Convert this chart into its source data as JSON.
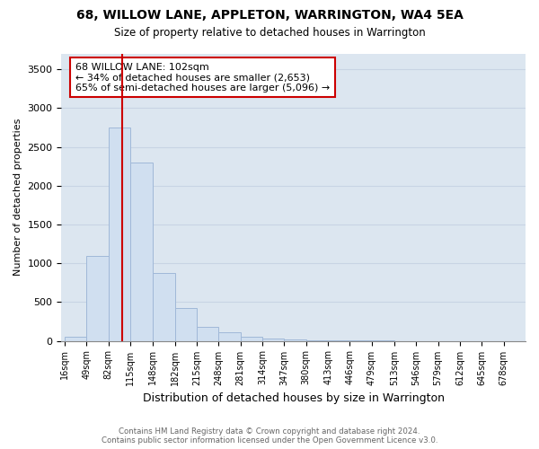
{
  "title": "68, WILLOW LANE, APPLETON, WARRINGTON, WA4 5EA",
  "subtitle": "Size of property relative to detached houses in Warrington",
  "xlabel": "Distribution of detached houses by size in Warrington",
  "ylabel": "Number of detached properties",
  "bar_color": "#d0dff0",
  "bar_edge_color": "#a0b8d8",
  "grid_color": "#c8d4e4",
  "background_color": "#dce6f0",
  "property_size": 102,
  "property_line_color": "#cc0000",
  "annotation_text": "68 WILLOW LANE: 102sqm\n← 34% of detached houses are smaller (2,653)\n65% of semi-detached houses are larger (5,096) →",
  "annotation_box_color": "#ffffff",
  "annotation_border_color": "#cc0000",
  "footer_text": "Contains HM Land Registry data © Crown copyright and database right 2024.\nContains public sector information licensed under the Open Government Licence v3.0.",
  "bin_edges": [
    16,
    49,
    82,
    115,
    148,
    182,
    215,
    248,
    281,
    314,
    347,
    380,
    413,
    446,
    479,
    513,
    546,
    579,
    612,
    645,
    678
  ],
  "bar_heights": [
    50,
    1100,
    2750,
    2300,
    880,
    420,
    175,
    110,
    55,
    35,
    18,
    8,
    4,
    2,
    1,
    0,
    0,
    0,
    0,
    0
  ],
  "ylim": [
    0,
    3700
  ],
  "yticks": [
    0,
    500,
    1000,
    1500,
    2000,
    2500,
    3000,
    3500
  ]
}
